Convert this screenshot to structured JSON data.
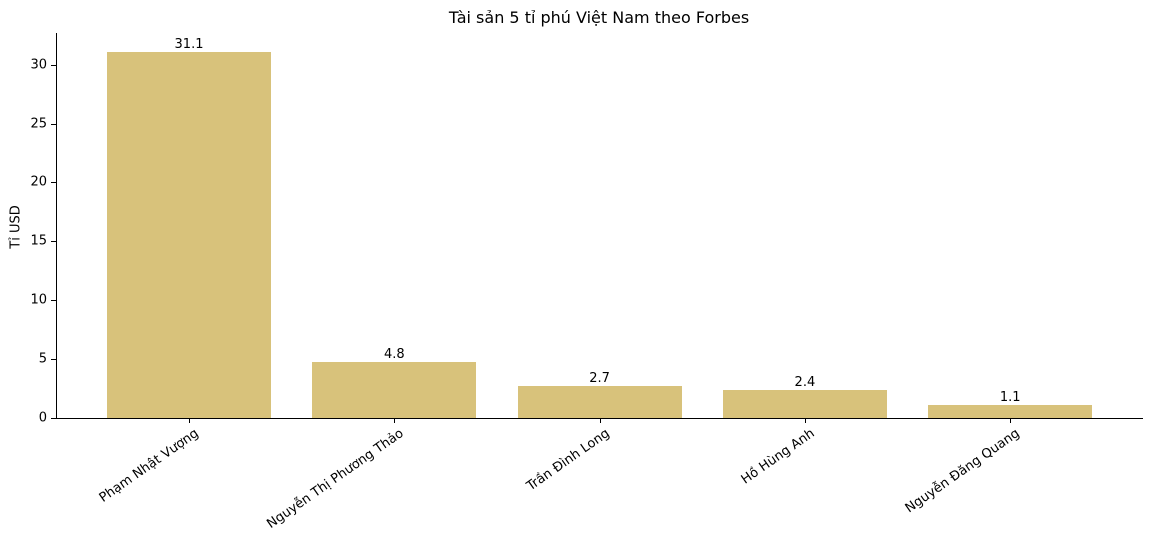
{
  "chart_data": {
    "type": "bar",
    "title": "Tài sản 5 tỉ phú Việt Nam theo Forbes",
    "xlabel": "",
    "ylabel": "Tỉ USD",
    "categories": [
      "Phạm Nhật Vượng",
      "Nguyễn Thị Phương Thảo",
      "Trần Đình Long",
      "Hồ Hùng Anh",
      "Nguyễn Đăng Quang"
    ],
    "values": [
      31.1,
      4.8,
      2.7,
      2.4,
      1.1
    ],
    "value_labels": [
      "31.1",
      "4.8",
      "2.7",
      "2.4",
      "1.1"
    ],
    "yticks": [
      "0",
      "5",
      "10",
      "15",
      "20",
      "25",
      "30"
    ],
    "ylim": [
      0,
      32.7
    ],
    "grid": false,
    "bar_color": "#d8c27b",
    "legend": null
  }
}
